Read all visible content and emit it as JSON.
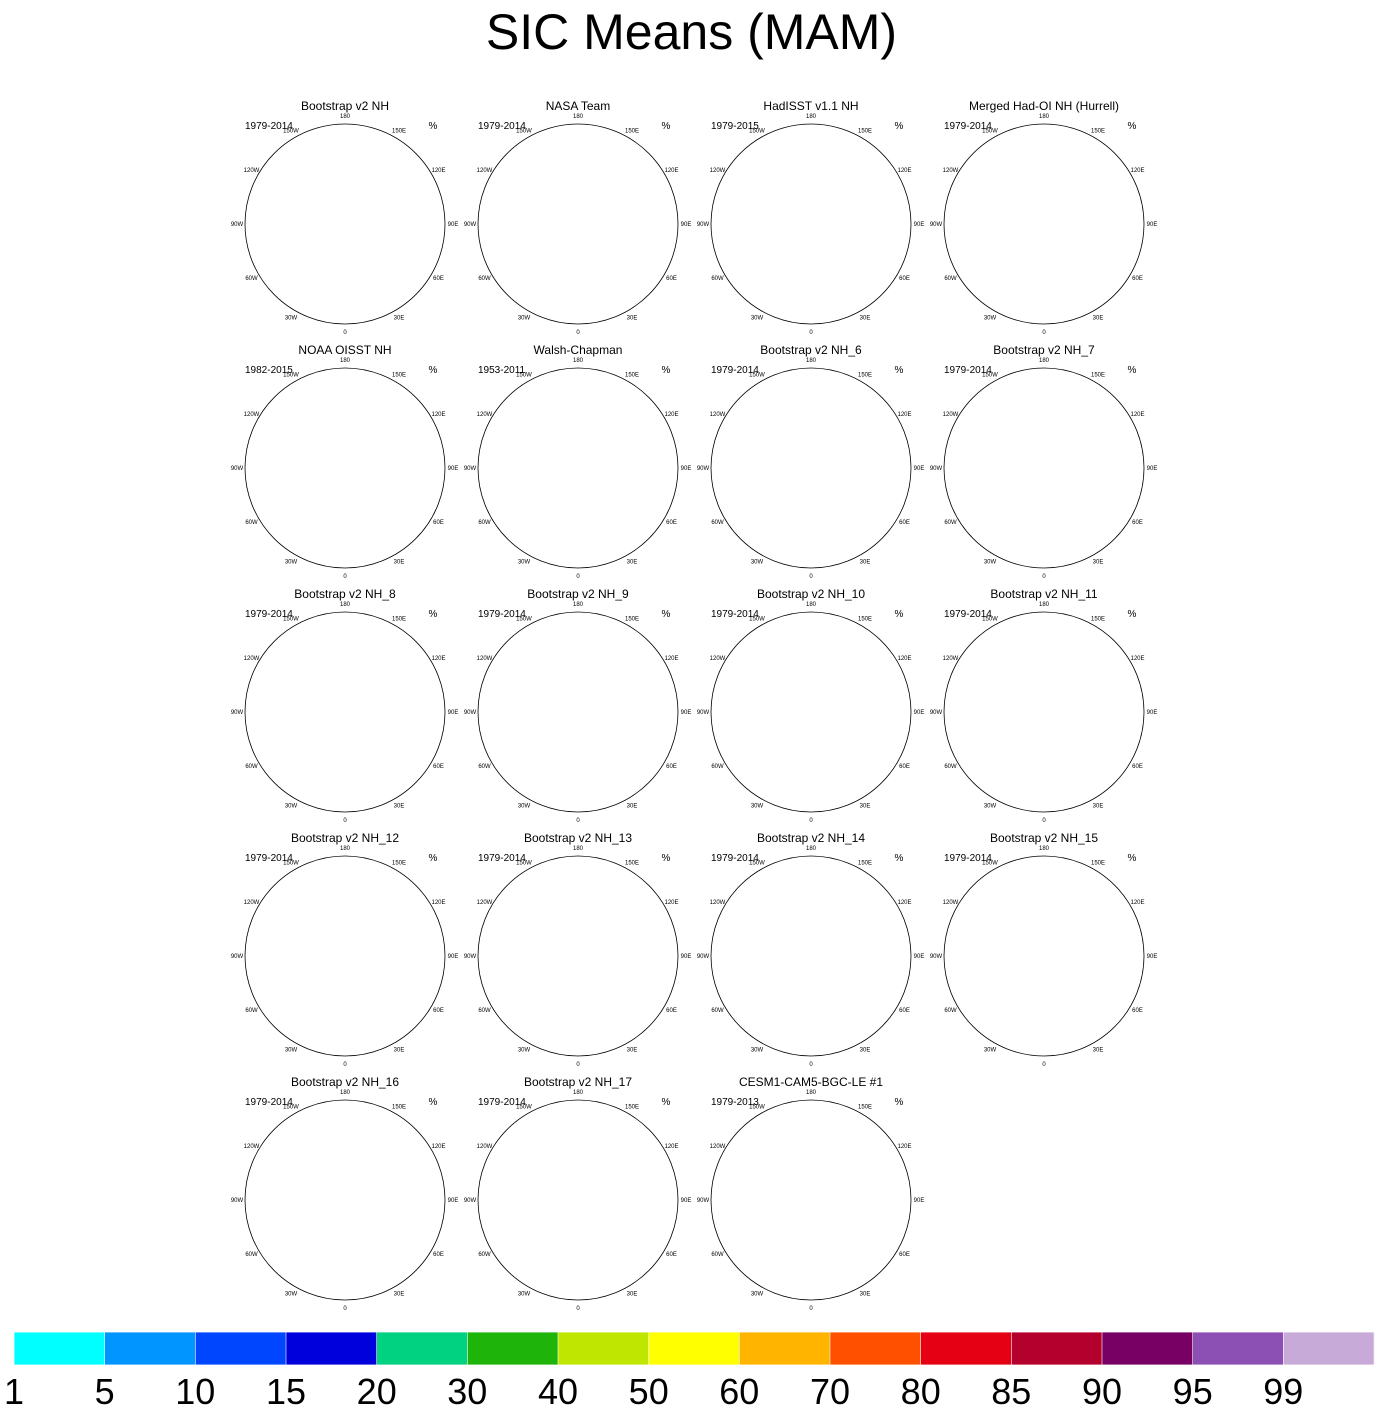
{
  "title": "SIC Means (MAM)",
  "unit": "%",
  "longitude_labels": [
    "180",
    "150E",
    "120E",
    "90E",
    "60E",
    "30E",
    "0",
    "30W",
    "60W",
    "90W",
    "120W",
    "150W"
  ],
  "colors": {
    "land": "#c0c0c0",
    "ocean": "#ffffff",
    "coast": "#5a5a5a",
    "pole_hole": "#ffffff"
  },
  "chart_data": {
    "type": "heatmap",
    "projection": "north polar stereographic",
    "variable": "sea ice concentration",
    "units": "%",
    "panels": [
      {
        "title": "Bootstrap v2 NH",
        "period": "1979-2014",
        "pole_hole": true
      },
      {
        "title": "NASA Team",
        "period": "1979-2014",
        "pole_hole": false
      },
      {
        "title": "HadISST v1.1 NH",
        "period": "1979-2015",
        "pole_hole": false
      },
      {
        "title": "Merged Had-OI NH (Hurrell)",
        "period": "1979-2014",
        "pole_hole": false
      },
      {
        "title": "NOAA OISST NH",
        "period": "1982-2015",
        "pole_hole": false
      },
      {
        "title": "Walsh-Chapman",
        "period": "1953-2011",
        "pole_hole": false
      },
      {
        "title": "Bootstrap v2 NH_6",
        "period": "1979-2014",
        "pole_hole": true
      },
      {
        "title": "Bootstrap v2 NH_7",
        "period": "1979-2014",
        "pole_hole": true
      },
      {
        "title": "Bootstrap v2 NH_8",
        "period": "1979-2014",
        "pole_hole": true
      },
      {
        "title": "Bootstrap v2 NH_9",
        "period": "1979-2014",
        "pole_hole": true
      },
      {
        "title": "Bootstrap v2 NH_10",
        "period": "1979-2014",
        "pole_hole": true
      },
      {
        "title": "Bootstrap v2 NH_11",
        "period": "1979-2014",
        "pole_hole": true
      },
      {
        "title": "Bootstrap v2 NH_12",
        "period": "1979-2014",
        "pole_hole": true
      },
      {
        "title": "Bootstrap v2 NH_13",
        "period": "1979-2014",
        "pole_hole": true
      },
      {
        "title": "Bootstrap v2 NH_14",
        "period": "1979-2014",
        "pole_hole": true
      },
      {
        "title": "Bootstrap v2 NH_15",
        "period": "1979-2014",
        "pole_hole": true
      },
      {
        "title": "Bootstrap v2 NH_16",
        "period": "1979-2014",
        "pole_hole": true
      },
      {
        "title": "Bootstrap v2 NH_17",
        "period": "1979-2014",
        "pole_hole": true
      },
      {
        "title": "CESM1-CAM5-BGC-LE #1",
        "period": "1979-2013",
        "pole_hole": false
      }
    ],
    "colorbar": {
      "levels": [
        "1",
        "5",
        "10",
        "15",
        "20",
        "30",
        "40",
        "50",
        "60",
        "70",
        "80",
        "85",
        "90",
        "95",
        "99"
      ],
      "colors": [
        "#00ffff",
        "#0095ff",
        "#0046ff",
        "#0000dc",
        "#00d282",
        "#1eb40a",
        "#bee600",
        "#ffff00",
        "#ffb400",
        "#ff5000",
        "#e60014",
        "#b4002d",
        "#780064",
        "#8c50b4",
        "#c8aad8"
      ]
    }
  }
}
